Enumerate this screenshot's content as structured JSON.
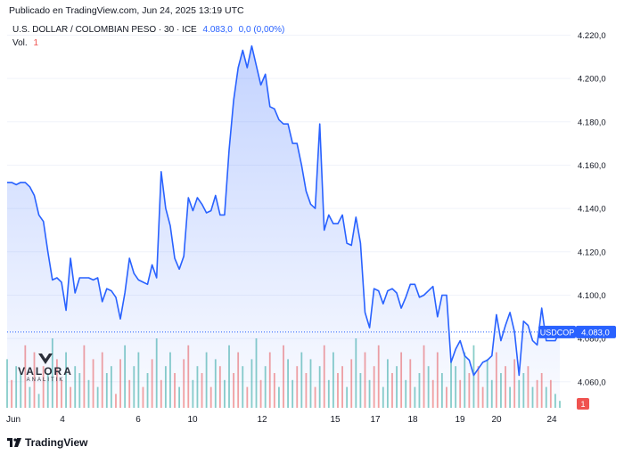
{
  "header": {
    "published": "Publicado en TradingView.com, Jun 24, 2025 13:19 UTC",
    "symbol": "U.S. DOLLAR / COLOMBIAN PESO · 30 · ICE",
    "price": "4.083,0",
    "change": "0,0 (0,00%)",
    "vol_label": "Vol.",
    "vol_value": "1"
  },
  "footer": {
    "brand": "TradingView"
  },
  "watermark": {
    "name": "VALORA",
    "sub": "ANALITIK"
  },
  "colors": {
    "line": "#2962ff",
    "up": "#26a69a",
    "down": "#ef5350",
    "fill": "#2962ff"
  },
  "chart_data": {
    "type": "area",
    "ticker": "USDCOP",
    "last_value": 4083.0,
    "last_label": "4.083,0",
    "ylim": [
      4048,
      4228
    ],
    "grid": true,
    "yticks": [
      4060,
      4080,
      4100,
      4120,
      4140,
      4160,
      4180,
      4200,
      4220
    ],
    "ytick_labels": [
      "4.060,0",
      "4.080,0",
      "4.100,0",
      "4.120,0",
      "4.140,0",
      "4.160,0",
      "4.180,0",
      "4.200,0",
      "4.220,0"
    ],
    "x_labels": [
      "Jun",
      "4",
      "6",
      "10",
      "12",
      "15",
      "17",
      "18",
      "19",
      "20",
      "24"
    ],
    "series": [
      {
        "values": [
          4152,
          4152,
          4151,
          4152,
          4152,
          4150,
          4146,
          4137,
          4134,
          4120,
          4107,
          4108,
          4106,
          4093,
          4117,
          4101,
          4108,
          4108,
          4108,
          4107,
          4108,
          4097,
          4103,
          4102,
          4099,
          4089,
          4101,
          4117,
          4110,
          4107,
          4106,
          4105,
          4114,
          4108,
          4157,
          4140,
          4132,
          4117,
          4112,
          4118,
          4145,
          4139,
          4145,
          4142,
          4138,
          4139,
          4146,
          4137,
          4137,
          4167,
          4190,
          4205,
          4213,
          4205,
          4215,
          4206,
          4197,
          4202,
          4187,
          4186,
          4181,
          4179,
          4179,
          4170,
          4170,
          4160,
          4148,
          4142,
          4140,
          4179,
          4130,
          4137,
          4133,
          4133,
          4137,
          4124,
          4123,
          4136,
          4124,
          4092,
          4085,
          4103,
          4102,
          4096,
          4102,
          4103,
          4101,
          4094,
          4099,
          4105,
          4105,
          4099,
          4100,
          4102,
          4104,
          4090,
          4100,
          4100,
          4069,
          4075,
          4079,
          4072,
          4070,
          4063,
          4066,
          4069,
          4070,
          4072,
          4091,
          4079,
          4086,
          4092,
          4083,
          4063,
          4088,
          4086,
          4079,
          4077,
          4094,
          4079,
          4079,
          4079,
          4083
        ]
      }
    ],
    "volume": [
      7,
      4,
      6,
      5,
      9,
      3,
      8,
      2,
      6,
      5,
      10,
      7,
      4,
      8,
      3,
      6,
      5,
      9,
      4,
      7,
      3,
      8,
      5,
      6,
      2,
      7,
      9,
      4,
      6,
      8,
      3,
      5,
      7,
      10,
      4,
      6,
      8,
      5,
      3,
      7,
      9,
      4,
      6,
      5,
      8,
      3,
      7,
      6,
      4,
      9,
      5,
      8,
      6,
      3,
      7,
      10,
      4,
      6,
      8,
      5,
      3,
      9,
      7,
      4,
      6,
      8,
      5,
      7,
      3,
      6,
      9,
      4,
      8,
      5,
      6,
      3,
      7,
      10,
      5,
      8,
      4,
      6,
      9,
      3,
      7,
      5,
      6,
      8,
      4,
      7,
      3,
      5,
      9,
      6,
      4,
      8,
      5,
      3,
      7,
      6,
      4,
      8,
      5,
      9,
      6,
      3,
      7,
      4,
      8,
      5,
      6,
      3,
      7,
      4,
      5,
      6,
      3,
      4,
      5,
      3,
      4,
      2,
      1
    ],
    "volume_direction": [
      1,
      0,
      1,
      1,
      0,
      1,
      0,
      1,
      0,
      1,
      1,
      0,
      0,
      1,
      0,
      1,
      1,
      0,
      1,
      0,
      1,
      0,
      1,
      1,
      0,
      0,
      1,
      0,
      1,
      1,
      0,
      1,
      0,
      1,
      0,
      1,
      1,
      0,
      1,
      0,
      0,
      1,
      1,
      0,
      1,
      0,
      1,
      0,
      1,
      1,
      0,
      0,
      1,
      0,
      1,
      1,
      0,
      1,
      0,
      0,
      1,
      0,
      1,
      1,
      0,
      1,
      0,
      1,
      0,
      1,
      0,
      1,
      1,
      0,
      0,
      1,
      0,
      1,
      1,
      0,
      1,
      0,
      0,
      1,
      1,
      0,
      1,
      0,
      1,
      0,
      1,
      1,
      0,
      1,
      0,
      0,
      1,
      0,
      1,
      1,
      0,
      1,
      0,
      1,
      0,
      0,
      1,
      1,
      0,
      1,
      0,
      1,
      0,
      1,
      1,
      0,
      1,
      0,
      0,
      1,
      0,
      1,
      1
    ]
  }
}
